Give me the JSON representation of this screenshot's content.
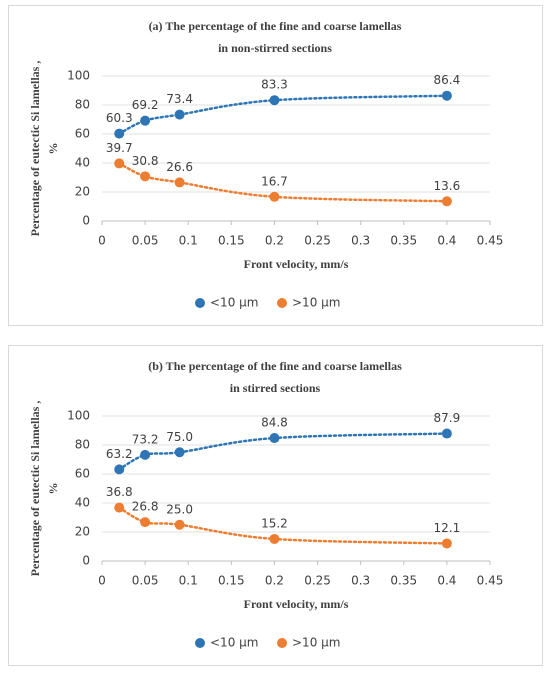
{
  "chart_data": [
    {
      "type": "scatter",
      "title": [
        "(a) The percentage of the fine and coarse lamellas",
        "in non-stirred sections"
      ],
      "xlabel": "Front velocity, mm/s",
      "ylabel": [
        "Percentage of eutectic Si lamellas ,",
        "%"
      ],
      "x": [
        0.02,
        0.05,
        0.09,
        0.2,
        0.4
      ],
      "series": [
        {
          "name": "<10 μm",
          "color": "#2e75b6",
          "values": [
            60.3,
            69.2,
            73.4,
            83.3,
            86.4
          ],
          "value_labels": [
            "60.3",
            "69.2",
            "73.4",
            "83.3",
            "86.4"
          ]
        },
        {
          "name": ">10 μm",
          "color": "#ed7d31",
          "values": [
            39.7,
            30.8,
            26.6,
            16.7,
            13.6
          ],
          "value_labels": [
            "39.7",
            "30.8",
            "26.6",
            "16.7",
            "13.6"
          ]
        }
      ],
      "xlim": [
        0,
        0.45
      ],
      "xticks": [
        0,
        0.05,
        0.1,
        0.15,
        0.2,
        0.25,
        0.3,
        0.35,
        0.4,
        0.45
      ],
      "ylim": [
        0,
        100
      ],
      "yticks": [
        0,
        20,
        40,
        60,
        80,
        100
      ],
      "grid": true,
      "legend": "bottom"
    },
    {
      "type": "scatter",
      "title": [
        "(b) The percentage of the fine and coarse lamellas",
        "in stirred sections"
      ],
      "xlabel": "Front velocity, mm/s",
      "ylabel": [
        "Percentage of eutectic Si lamellas ,",
        "%"
      ],
      "x": [
        0.02,
        0.05,
        0.09,
        0.2,
        0.4
      ],
      "series": [
        {
          "name": "<10  μm",
          "color": "#2e75b6",
          "values": [
            63.2,
            73.2,
            75.0,
            84.8,
            87.9
          ],
          "value_labels": [
            "63.2",
            "73.2",
            "75.0",
            "84.8",
            "87.9"
          ]
        },
        {
          "name": ">10 μm",
          "color": "#ed7d31",
          "values": [
            36.8,
            26.8,
            25.0,
            15.2,
            12.1
          ],
          "value_labels": [
            "36.8",
            "26.8",
            "25.0",
            "15.2",
            "12.1"
          ]
        }
      ],
      "xlim": [
        0,
        0.45
      ],
      "xticks": [
        0,
        0.05,
        0.1,
        0.15,
        0.2,
        0.25,
        0.3,
        0.35,
        0.4,
        0.45
      ],
      "ylim": [
        0,
        100
      ],
      "yticks": [
        0,
        20,
        40,
        60,
        80,
        100
      ],
      "grid": true,
      "legend": "bottom"
    }
  ]
}
